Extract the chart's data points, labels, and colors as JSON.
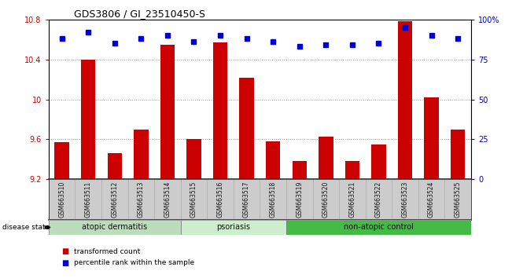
{
  "title": "GDS3806 / GI_23510450-S",
  "samples": [
    "GSM663510",
    "GSM663511",
    "GSM663512",
    "GSM663513",
    "GSM663514",
    "GSM663515",
    "GSM663516",
    "GSM663517",
    "GSM663518",
    "GSM663519",
    "GSM663520",
    "GSM663521",
    "GSM663522",
    "GSM663523",
    "GSM663524",
    "GSM663525"
  ],
  "bar_values": [
    9.57,
    10.4,
    9.46,
    9.7,
    10.55,
    9.6,
    10.57,
    10.22,
    9.58,
    9.38,
    9.63,
    9.38,
    9.55,
    10.78,
    10.02,
    9.7
  ],
  "dot_values": [
    88,
    92,
    85,
    88,
    90,
    86,
    90,
    88,
    86,
    83,
    84,
    84,
    85,
    95,
    90,
    88
  ],
  "ylim_left": [
    9.2,
    10.8
  ],
  "ylim_right": [
    0,
    100
  ],
  "yticks_left": [
    9.2,
    9.6,
    10.0,
    10.4,
    10.8
  ],
  "ytick_labels_left": [
    "9.2",
    "9.6",
    "10",
    "10.4",
    "10.8"
  ],
  "yticks_right": [
    0,
    25,
    50,
    75,
    100
  ],
  "ytick_labels_right": [
    "0",
    "25",
    "50",
    "75",
    "100%"
  ],
  "bar_color": "#cc0000",
  "dot_color": "#0000cc",
  "groups": [
    {
      "label": "atopic dermatitis",
      "start": 0,
      "end": 5,
      "color": "#bbddbb"
    },
    {
      "label": "psoriasis",
      "start": 5,
      "end": 9,
      "color": "#cceecc"
    },
    {
      "label": "non-atopic control",
      "start": 9,
      "end": 16,
      "color": "#44bb44"
    }
  ],
  "disease_state_label": "disease state",
  "legend_items": [
    {
      "label": "transformed count",
      "color": "#cc0000"
    },
    {
      "label": "percentile rank within the sample",
      "color": "#0000cc"
    }
  ],
  "background_color": "#ffffff",
  "grid_color": "#888888",
  "label_bg_color": "#cccccc"
}
